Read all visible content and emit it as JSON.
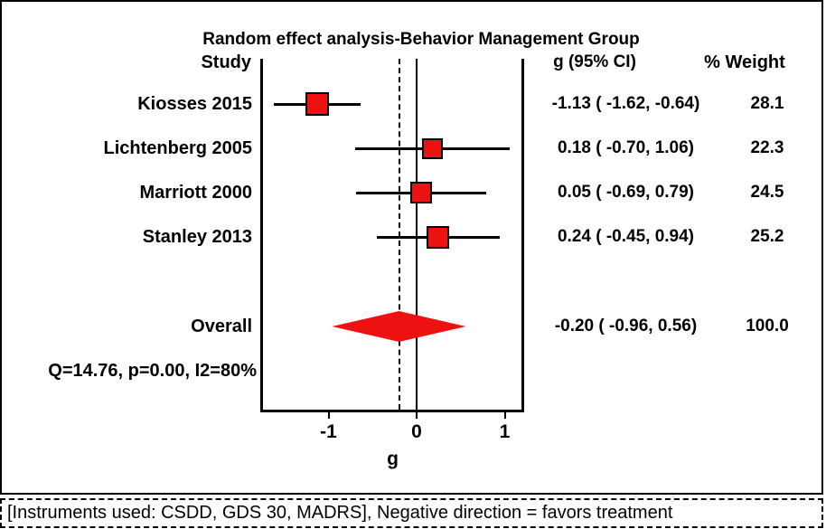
{
  "figure": {
    "caption": "[Instruments used: CSDD, GDS 30, MADRS], Negative direction = favors treatment"
  },
  "chart_data": {
    "type": "forest",
    "title": "Random effect analysis-Behavior Management Group",
    "columns": {
      "study": "Study",
      "effect": "g (95% CI)",
      "weight": "% Weight"
    },
    "studies": [
      {
        "label": "Kiosses 2015",
        "g": -1.13,
        "ci_low": -1.62,
        "ci_high": -0.64,
        "weight": 28.1,
        "effect_text": "-1.13 ( -1.62, -0.64)",
        "weight_text": "28.1"
      },
      {
        "label": "Lichtenberg 2005",
        "g": 0.18,
        "ci_low": -0.7,
        "ci_high": 1.06,
        "weight": 22.3,
        "effect_text": "0.18 ( -0.70, 1.06)",
        "weight_text": "22.3"
      },
      {
        "label": "Marriott 2000",
        "g": 0.05,
        "ci_low": -0.69,
        "ci_high": 0.79,
        "weight": 24.5,
        "effect_text": "0.05 ( -0.69, 0.79)",
        "weight_text": "24.5"
      },
      {
        "label": "Stanley 2013",
        "g": 0.24,
        "ci_low": -0.45,
        "ci_high": 0.94,
        "weight": 25.2,
        "effect_text": "0.24 ( -0.45, 0.94)",
        "weight_text": "25.2"
      }
    ],
    "overall": {
      "label": "Overall",
      "g": -0.2,
      "ci_low": -0.96,
      "ci_high": 0.56,
      "weight": 100.0,
      "effect_text": "-0.20 ( -0.96, 0.56)",
      "weight_text": "100.0"
    },
    "heterogeneity": "Q=14.76, p=0.00, I2=80%",
    "axis": {
      "label": "g",
      "ticks": [
        -1,
        0,
        1
      ],
      "tick_labels": [
        "-1",
        "0",
        "1"
      ],
      "reference_line": 0,
      "dashed_line_at": -0.2
    },
    "colors": {
      "marker": "#ee1111",
      "line": "#000000"
    }
  }
}
